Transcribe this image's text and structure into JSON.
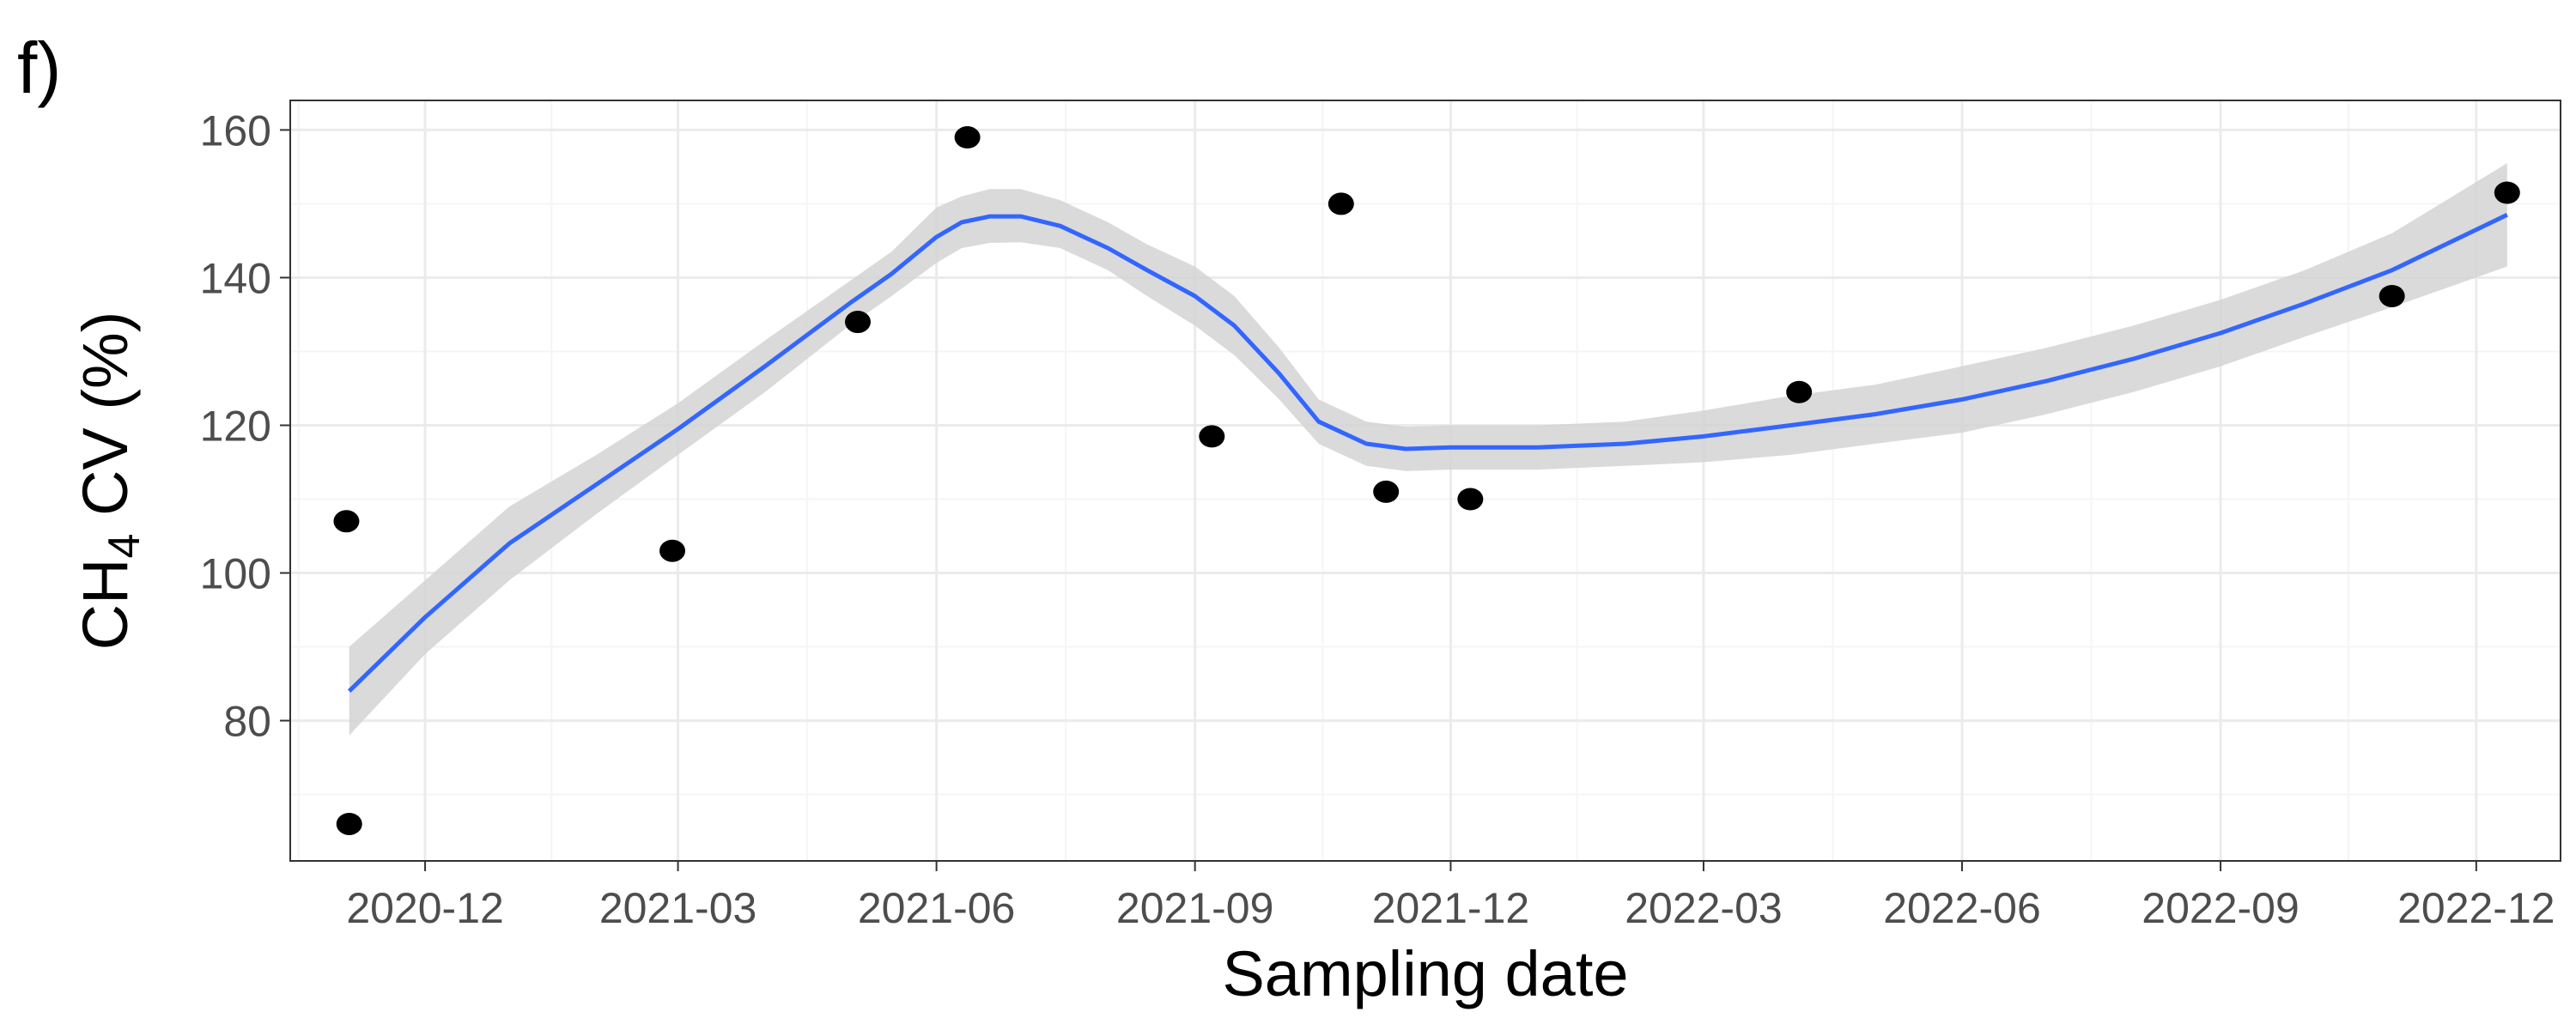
{
  "panel_label": "f)",
  "colors": {
    "line": "#3366ff",
    "ribbon": "#d3d3d3",
    "points": "#000000",
    "grid_major": "#ebebeb",
    "grid_minor": "#f5f5f5",
    "panel_border": "#333333"
  },
  "chart_data": {
    "type": "scatter",
    "title": "",
    "xlabel": "Sampling date",
    "ylabel": {
      "main": "CH",
      "subscript": "4",
      "rest": " CV (%)"
    },
    "x_axis": "date",
    "xlim": [
      "2020-10-14",
      "2022-12-31"
    ],
    "ylim": [
      61,
      164
    ],
    "x_ticks": [
      "2020-12-01",
      "2021-03-01",
      "2021-06-01",
      "2021-09-01",
      "2021-12-01",
      "2022-03-01",
      "2022-06-01",
      "2022-09-01",
      "2022-12-01"
    ],
    "x_tick_labels": [
      "2020-12",
      "2021-03",
      "2021-06",
      "2021-09",
      "2021-12",
      "2022-03",
      "2022-06",
      "2022-09",
      "2022-12"
    ],
    "y_ticks": [
      80,
      100,
      120,
      140,
      160
    ],
    "grid": true,
    "legend": "none",
    "points": [
      {
        "x": "2020-11-03",
        "y": 107
      },
      {
        "x": "2020-11-04",
        "y": 66
      },
      {
        "x": "2021-02-27",
        "y": 103
      },
      {
        "x": "2021-05-04",
        "y": 134
      },
      {
        "x": "2021-06-12",
        "y": 159
      },
      {
        "x": "2021-09-07",
        "y": 118.5
      },
      {
        "x": "2021-10-23",
        "y": 150
      },
      {
        "x": "2021-11-08",
        "y": 111
      },
      {
        "x": "2021-12-08",
        "y": 110
      },
      {
        "x": "2022-04-04",
        "y": 124.5
      },
      {
        "x": "2022-11-01",
        "y": 137.5
      },
      {
        "x": "2022-12-12",
        "y": 151.5
      }
    ],
    "smooth": {
      "method": "loess",
      "x": [
        "2020-11-04",
        "2020-12-01",
        "2020-12-31",
        "2021-01-31",
        "2021-03-01",
        "2021-04-01",
        "2021-05-01",
        "2021-05-16",
        "2021-06-01",
        "2021-06-10",
        "2021-06-20",
        "2021-07-01",
        "2021-07-15",
        "2021-08-01",
        "2021-08-15",
        "2021-09-01",
        "2021-09-15",
        "2021-10-01",
        "2021-10-15",
        "2021-11-01",
        "2021-11-15",
        "2021-12-01",
        "2021-12-15",
        "2022-01-01",
        "2022-02-01",
        "2022-03-01",
        "2022-04-01",
        "2022-05-01",
        "2022-06-01",
        "2022-07-01",
        "2022-08-01",
        "2022-09-01",
        "2022-10-01",
        "2022-11-01",
        "2022-12-12"
      ],
      "y": [
        84,
        94,
        104,
        112,
        119.5,
        128,
        136.5,
        140.5,
        145.5,
        147.5,
        148.3,
        148.3,
        147,
        144,
        141,
        137.5,
        133.5,
        127,
        120.5,
        117.5,
        116.8,
        117,
        117,
        117,
        117.5,
        118.5,
        120,
        121.5,
        123.5,
        126,
        129,
        132.5,
        136.5,
        141,
        148.5
      ],
      "lower": [
        78,
        89,
        99,
        108,
        116,
        124.5,
        133.5,
        137.5,
        142,
        144,
        144.7,
        144.8,
        144,
        141,
        137.5,
        133.5,
        129.5,
        123.5,
        117.5,
        114.5,
        113.8,
        114,
        114,
        114,
        114.5,
        115,
        116,
        117.5,
        119,
        121.5,
        124.5,
        128,
        132,
        136,
        141.5
      ],
      "upper": [
        90,
        99,
        109,
        116,
        123,
        131.5,
        139.5,
        143.5,
        149.5,
        151,
        152,
        152,
        150.5,
        147.5,
        144.5,
        141.5,
        137.5,
        130.5,
        123.5,
        120.5,
        119.8,
        120,
        120,
        120,
        120.5,
        122,
        124,
        125.5,
        128,
        130.5,
        133.5,
        137,
        141,
        146,
        155.5
      ]
    }
  }
}
